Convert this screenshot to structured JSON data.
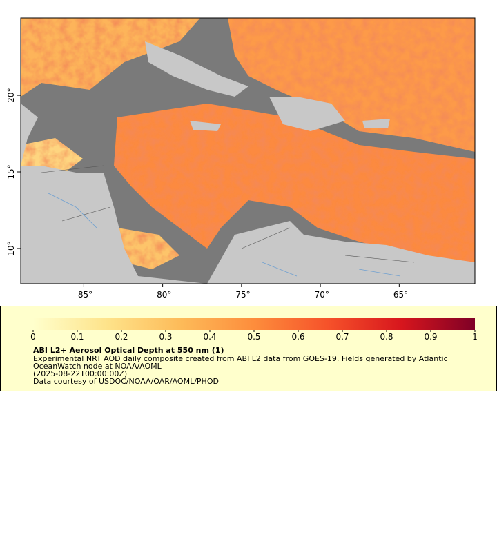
{
  "map": {
    "xlim": [
      -89,
      -60.2
    ],
    "ylim": [
      7.7,
      25.05
    ],
    "xticks": [
      {
        "value": -85,
        "label": "-85°"
      },
      {
        "value": -80,
        "label": "-80°"
      },
      {
        "value": -75,
        "label": "-75°"
      },
      {
        "value": -70,
        "label": "-70°"
      },
      {
        "value": -65,
        "label": "-65°"
      }
    ],
    "yticks": [
      {
        "value": 10,
        "label": "10°"
      },
      {
        "value": 15,
        "label": "15°"
      },
      {
        "value": 20,
        "label": "20°"
      }
    ]
  },
  "colorbar": {
    "lim": [
      0,
      1
    ],
    "ticks": [
      0,
      0.1,
      0.2,
      0.3,
      0.4,
      0.5,
      0.6,
      0.7,
      0.8,
      0.9,
      1
    ],
    "colors": [
      "#ffffcc",
      "#fee38a",
      "#fdbb59",
      "#fd8d3c",
      "#f6522a",
      "#d7161d",
      "#7f0026"
    ]
  },
  "legend": {
    "title": "ABI L2+ Aerosol Optical Depth at 550 nm (1)",
    "lines": [
      "Experimental NRT AOD daily composite created from ABI L2 data from GOES-19. Fields generated by Atlantic",
      "OceanWatch node at NOAA/AOML",
      "(2025-08-22T00:00:00Z)",
      "Data courtesy of USDOC/NOAA/OAR/AOML/PHOD"
    ]
  }
}
